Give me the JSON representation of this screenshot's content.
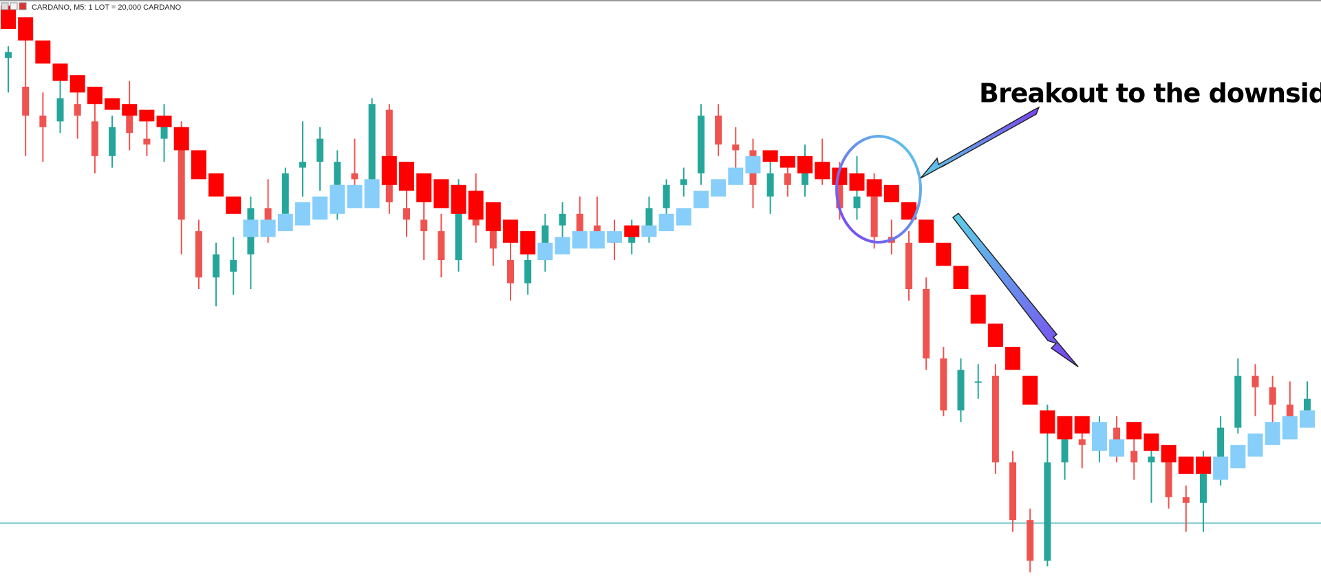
{
  "chart_data": {
    "type": "candlestick",
    "header": "CARDANO, M5:  1 LOT = 20,000 CARDANO",
    "annotation": "Breakout to the downside",
    "ylim": [
      0,
      100
    ],
    "hline": 9.5,
    "up_color": "#26a69a",
    "down_color": "#ef5350",
    "overlay_up_color": "#87cefa",
    "overlay_down_color": "#ff0000",
    "hline_color": "#7fc8d0",
    "candles": {
      "open": [
        90,
        85,
        80,
        79,
        82,
        79,
        73,
        80,
        76,
        76,
        78,
        60,
        52,
        53,
        56,
        64,
        63,
        71,
        72,
        68,
        70,
        69,
        81,
        64,
        62,
        60,
        55,
        66,
        61,
        55,
        51,
        55,
        61,
        63,
        61,
        59,
        58,
        60,
        64,
        68,
        70,
        80,
        75,
        74,
        66,
        70,
        68,
        72,
        70,
        64,
        66,
        59,
        58,
        50,
        38,
        29,
        34,
        35,
        20,
        10,
        3,
        20,
        24,
        23,
        26,
        22,
        20,
        20,
        14,
        13,
        18,
        26,
        35,
        33,
        30,
        29
      ],
      "high": [
        92,
        97,
        84,
        86,
        86,
        84,
        80,
        86,
        80,
        82,
        79,
        62,
        58,
        59,
        66,
        69,
        71,
        79,
        78,
        74,
        76,
        83,
        82,
        69,
        66,
        63,
        69,
        70,
        65,
        59,
        57,
        63,
        65,
        66,
        66,
        62,
        62,
        66,
        69,
        71,
        82,
        82,
        78,
        76,
        72,
        73,
        75,
        76,
        72,
        73,
        70,
        62,
        60,
        52,
        40,
        38,
        37,
        37,
        22,
        12,
        30,
        28,
        28,
        28,
        28,
        25,
        24,
        22,
        16,
        22,
        28,
        38,
        37,
        35,
        34,
        34
      ],
      "low": [
        84,
        73,
        72,
        77,
        76,
        70,
        71,
        74,
        73,
        72,
        56,
        50,
        47,
        49,
        50,
        58,
        61,
        66,
        67,
        62,
        66,
        68,
        63,
        59,
        55,
        52,
        53,
        58,
        54,
        48,
        49,
        53,
        58,
        59,
        57,
        55,
        56,
        58,
        62,
        66,
        68,
        73,
        70,
        64,
        63,
        66,
        66,
        68,
        62,
        62,
        57,
        56,
        48,
        36,
        28,
        27,
        31,
        18,
        8,
        1,
        2,
        17,
        19,
        20,
        20,
        17,
        13,
        12,
        8,
        8,
        16,
        25,
        28,
        25,
        24,
        26
      ],
      "close": [
        91,
        80,
        78,
        83,
        80,
        73,
        78,
        77,
        75,
        79,
        62,
        52,
        56,
        55,
        64,
        61,
        70,
        72,
        76,
        72,
        69,
        82,
        65,
        62,
        60,
        55,
        68,
        61,
        57,
        51,
        55,
        61,
        63,
        60,
        59,
        58,
        60,
        64,
        68,
        69,
        80,
        75,
        74,
        68,
        70,
        68,
        72,
        71,
        64,
        66,
        59,
        58,
        50,
        38,
        29,
        36,
        34,
        20,
        10,
        3,
        20,
        24,
        23,
        26,
        22,
        20,
        21,
        14,
        13,
        18,
        26,
        35,
        33,
        30,
        27,
        31
      ]
    },
    "overlay": {
      "open": [
        99,
        97,
        93,
        89,
        87,
        85,
        83,
        82,
        81,
        80,
        78,
        74,
        70,
        66,
        59,
        59,
        60,
        61,
        62,
        63,
        64,
        64,
        73,
        72,
        70,
        69,
        68,
        67,
        65,
        62,
        60,
        55,
        56,
        57,
        57,
        58,
        61,
        59,
        60,
        61,
        64,
        66,
        68,
        70,
        74,
        73,
        73,
        72,
        71,
        70,
        69,
        68,
        65,
        62,
        58,
        54,
        49,
        44,
        40,
        35,
        29,
        28,
        28,
        22,
        21,
        27,
        25,
        23,
        21,
        21,
        17,
        19,
        21,
        23,
        24,
        26
      ],
      "close": [
        95,
        93,
        89,
        86,
        84,
        82,
        81,
        80,
        79,
        78,
        74,
        69,
        66,
        63,
        62,
        62,
        63,
        65,
        66,
        68,
        68,
        69,
        68,
        67,
        65,
        64,
        63,
        62,
        60,
        58,
        56,
        58,
        59,
        60,
        60,
        60,
        59,
        61,
        63,
        64,
        67,
        69,
        71,
        73,
        72,
        71,
        70,
        69,
        68,
        67,
        66,
        65,
        62,
        58,
        54,
        50,
        44,
        40,
        36,
        30,
        25,
        24,
        25,
        27,
        24,
        24,
        22,
        20,
        18,
        18,
        21,
        23,
        25,
        27,
        28,
        29
      ]
    }
  }
}
